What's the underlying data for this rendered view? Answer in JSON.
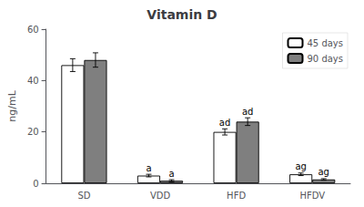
{
  "chart_data": {
    "type": "bar",
    "title": "Vitamin D",
    "ylabel": "ng/mL",
    "categories": [
      "SD",
      "VDD",
      "HFD",
      "HFDV"
    ],
    "series": [
      {
        "name": "45 days",
        "color": "#ffffff",
        "values": [
          46,
          3,
          20,
          3.5
        ],
        "errors": [
          2.5,
          0.5,
          1.2,
          0.5
        ],
        "annotations": [
          null,
          "a",
          "ad",
          "ag"
        ]
      },
      {
        "name": "90 days",
        "color": "#7f7f7f",
        "values": [
          48,
          1,
          24,
          1.5
        ],
        "errors": [
          2.8,
          0.4,
          1.5,
          0.3
        ],
        "annotations": [
          null,
          "a",
          "ad",
          "ag"
        ]
      }
    ],
    "ylim": [
      0,
      60
    ],
    "yticks": [
      0,
      20,
      40,
      60
    ],
    "grid": false,
    "legend": "upper right"
  }
}
